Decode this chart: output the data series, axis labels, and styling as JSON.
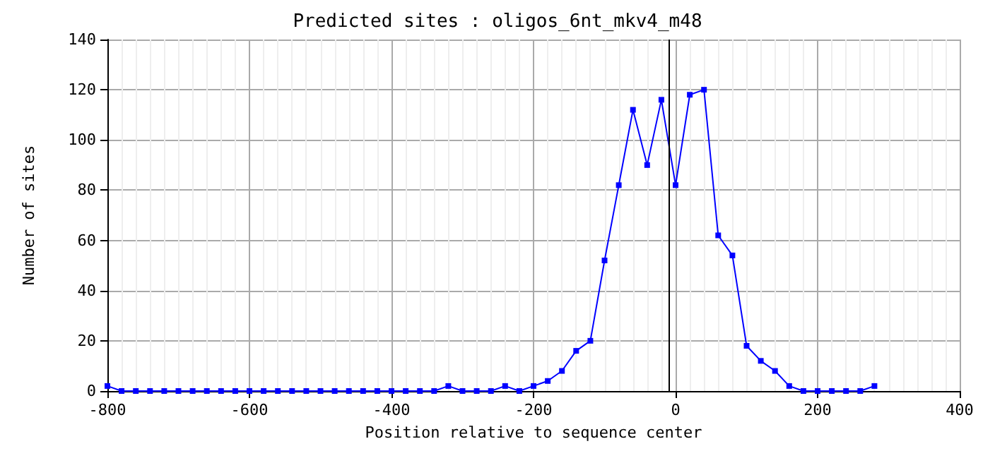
{
  "chart_data": {
    "type": "line",
    "title": "Predicted sites : oligos_6nt_mkv4_m48",
    "xlabel": "Position relative to sequence center",
    "ylabel": "Number of sites",
    "x": [
      -800,
      -780,
      -760,
      -740,
      -720,
      -700,
      -680,
      -660,
      -640,
      -620,
      -600,
      -580,
      -560,
      -540,
      -520,
      -500,
      -480,
      -460,
      -440,
      -420,
      -400,
      -380,
      -360,
      -340,
      -320,
      -300,
      -280,
      -260,
      -240,
      -220,
      -200,
      -180,
      -160,
      -140,
      -120,
      -100,
      -80,
      -60,
      -40,
      -20,
      0,
      20,
      40,
      60,
      80,
      100,
      120,
      140,
      160,
      180,
      200,
      220,
      240,
      260,
      280
    ],
    "series": [
      {
        "color": "#0000ff",
        "values": [
          2,
          0,
          0,
          0,
          0,
          0,
          0,
          0,
          0,
          0,
          0,
          0,
          0,
          0,
          0,
          0,
          0,
          0,
          0,
          0,
          0,
          0,
          0,
          0,
          2,
          0,
          0,
          0,
          2,
          0,
          2,
          4,
          8,
          16,
          20,
          52,
          82,
          112,
          90,
          116,
          82,
          118,
          120,
          62,
          54,
          18,
          12,
          8,
          2,
          0,
          0,
          0,
          0,
          0,
          2
        ]
      }
    ],
    "xlim": [
      -800,
      400
    ],
    "xticks": [
      -800,
      -600,
      -400,
      -200,
      0,
      200,
      400
    ],
    "ylim": [
      0,
      140
    ],
    "yticks": [
      0,
      20,
      40,
      60,
      80,
      100,
      120,
      140
    ],
    "ref_lines": [
      {
        "axis": "x",
        "value": -10,
        "color": "#000000"
      }
    ],
    "grid": true,
    "marker": "square",
    "line_style": "solid"
  }
}
